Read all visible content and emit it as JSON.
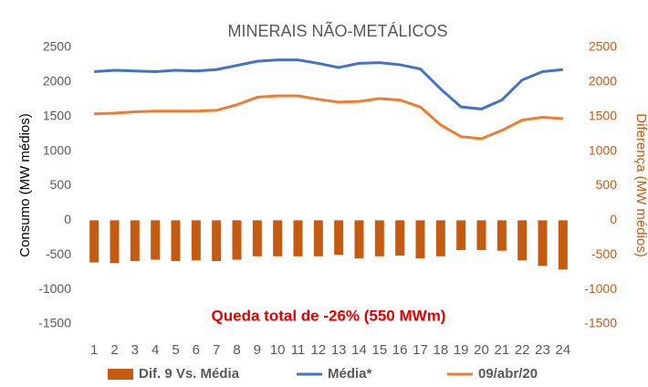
{
  "chart_data": {
    "type": "bar-line",
    "title": "MINERAIS NÃO-METÁLICOS",
    "ylabel": "Consumo (MW médios)",
    "y2label": "Diferença (MW médios)",
    "annotation": "Queda total de -26% (550 MWm)",
    "categories": [
      1,
      2,
      3,
      4,
      5,
      6,
      7,
      8,
      9,
      10,
      11,
      12,
      13,
      14,
      15,
      16,
      17,
      18,
      19,
      20,
      21,
      22,
      23,
      24
    ],
    "series": [
      {
        "name": "Dif. 9 Vs. Média",
        "type": "bar",
        "axis": "y2",
        "color": "#c55a11",
        "values": [
          -610,
          -620,
          -590,
          -570,
          -590,
          -580,
          -590,
          -570,
          -520,
          -520,
          -520,
          -520,
          -500,
          -550,
          -520,
          -510,
          -550,
          -520,
          -430,
          -430,
          -440,
          -580,
          -660,
          -710
        ]
      },
      {
        "name": "Média*",
        "type": "line",
        "color": "#4472c4",
        "values": [
          2150,
          2170,
          2160,
          2150,
          2170,
          2160,
          2180,
          2240,
          2300,
          2320,
          2320,
          2270,
          2210,
          2270,
          2280,
          2250,
          2190,
          1900,
          1640,
          1610,
          1740,
          2030,
          2150,
          2180
        ]
      },
      {
        "name": "09/abr/20",
        "type": "line",
        "color": "#ed7d31",
        "values": [
          1540,
          1550,
          1570,
          1580,
          1580,
          1580,
          1590,
          1670,
          1780,
          1800,
          1800,
          1750,
          1710,
          1720,
          1760,
          1740,
          1640,
          1380,
          1210,
          1180,
          1300,
          1450,
          1490,
          1470
        ]
      }
    ],
    "ylim": [
      -1500,
      2500
    ],
    "yticks": [
      2500,
      2000,
      1500,
      1000,
      500,
      0,
      -500,
      -1000,
      -1500
    ],
    "y2lim": [
      -1500,
      2500
    ],
    "y2ticks": [
      2500,
      2000,
      1500,
      1000,
      500,
      0,
      -500,
      -1000,
      -1500
    ],
    "y2color": "#c55a11",
    "annotation_color": "#e00000",
    "grid": false
  }
}
